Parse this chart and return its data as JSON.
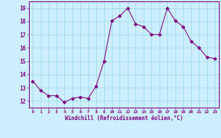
{
  "x": [
    0,
    1,
    2,
    3,
    4,
    5,
    6,
    7,
    8,
    9,
    10,
    11,
    12,
    13,
    14,
    15,
    16,
    17,
    18,
    19,
    20,
    21,
    22,
    23
  ],
  "y": [
    13.5,
    12.8,
    12.4,
    12.4,
    11.9,
    12.2,
    12.3,
    12.2,
    13.1,
    15.0,
    18.05,
    18.4,
    19.0,
    17.8,
    17.6,
    17.0,
    17.0,
    19.0,
    18.05,
    17.6,
    16.5,
    16.0,
    15.3,
    15.2
  ],
  "xlabel": "Windchill (Refroidissement éolien,°C)",
  "xlim": [
    -0.5,
    23.5
  ],
  "ylim": [
    11.5,
    19.5
  ],
  "yticks": [
    12,
    13,
    14,
    15,
    16,
    17,
    18,
    19
  ],
  "xticks": [
    0,
    1,
    2,
    3,
    4,
    5,
    6,
    7,
    8,
    9,
    10,
    11,
    12,
    13,
    14,
    15,
    16,
    17,
    18,
    19,
    20,
    21,
    22,
    23
  ],
  "line_color": "#800080",
  "marker": "D",
  "marker_size": 2.5,
  "bg_color": "#cceeff",
  "grid_color": "#99dddd",
  "label_color": "#800080",
  "tick_color": "#800080"
}
